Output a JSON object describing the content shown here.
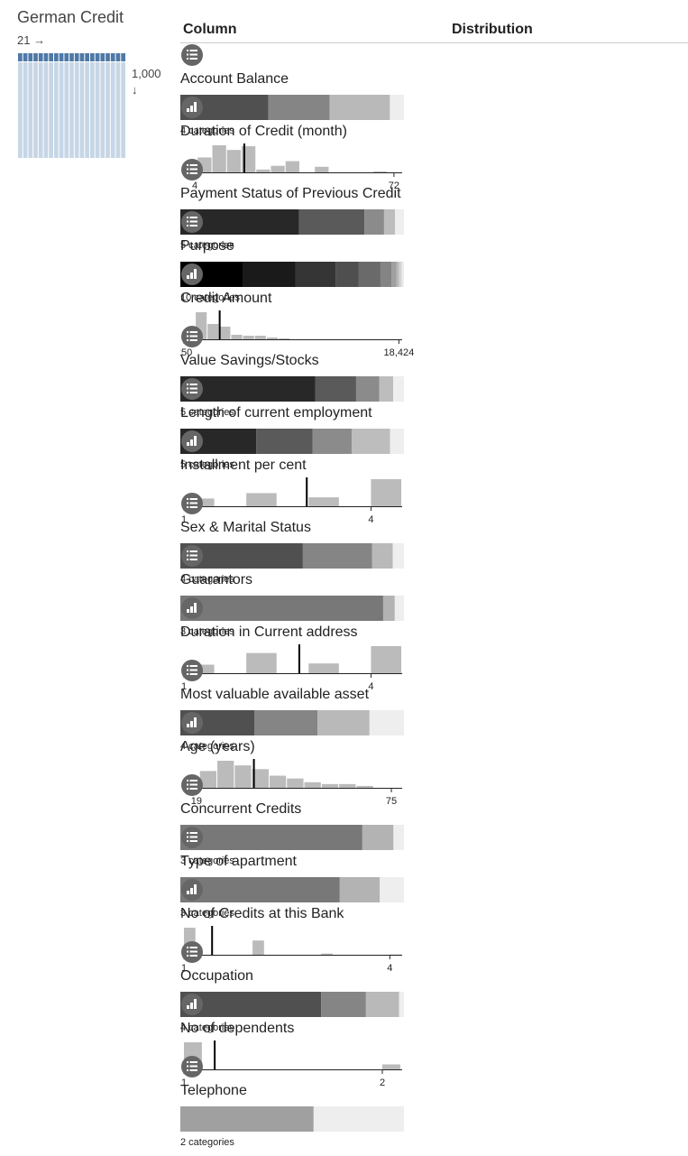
{
  "header": {
    "title": "German Credit",
    "columns": 21,
    "rows": "1,000"
  },
  "table": {
    "headers": [
      "Column",
      "Distribution"
    ],
    "rows": [
      {
        "name": "Account Balance",
        "kind": "categorical",
        "segments": [
          39.4,
          27.4,
          26.9,
          6.3
        ],
        "label": "4 categories"
      },
      {
        "name": "Duration of Credit (month)",
        "kind": "numeric",
        "xlim": [
          0.3,
          74.8
        ],
        "xticks": [
          4,
          72
        ],
        "bins": [
          5,
          10,
          15,
          20,
          25,
          30,
          35,
          40,
          45,
          50,
          55,
          60,
          65,
          70
        ],
        "counts": [
          16,
          29,
          24,
          28,
          3,
          7,
          12,
          0,
          6,
          0,
          0,
          0,
          1
        ],
        "mean": 20.9
      },
      {
        "name": "Payment Status of Previous Credit",
        "kind": "categorical",
        "segments": [
          53,
          29.3,
          8.8,
          4.9,
          4
        ],
        "label": "5 categories"
      },
      {
        "name": "Purpose",
        "kind": "categorical",
        "segments": [
          28,
          23.4,
          18.1,
          10.3,
          9.7,
          5,
          2.2,
          1.2,
          1.2,
          0.9
        ],
        "label": "10 categories"
      },
      {
        "name": "Credit Amount",
        "kind": "numeric",
        "xlim": [
          250,
          18700
        ],
        "xticks": [
          250,
          {
            "value": 18424,
            "label": "18,424"
          }
        ],
        "bins": [
          250,
          1250,
          2250,
          3250,
          4250,
          5250,
          6250,
          7250,
          8250,
          9250
        ],
        "counts": [
          9,
          30,
          17,
          14,
          5,
          4,
          4,
          2,
          1
        ],
        "mean": 3271
      },
      {
        "name": "Value Savings/Stocks",
        "kind": "categorical",
        "segments": [
          60.3,
          18.3,
          10.3,
          6.3,
          4.8
        ],
        "label": "5 categories"
      },
      {
        "name": "Length of current employment",
        "kind": "categorical",
        "segments": [
          33.9,
          25.3,
          17.4,
          17.2,
          6.2
        ],
        "label": "5 categories"
      },
      {
        "name": "Installment per cent",
        "kind": "numeric",
        "xlim": [
          1,
          4.5
        ],
        "xticks": [
          1,
          4
        ],
        "bins": [
          1,
          1.5,
          2,
          2.5,
          3,
          3.5,
          4,
          4.5
        ],
        "counts": [
          136,
          0,
          231,
          0,
          157,
          0,
          476
        ],
        "mean": 2.97
      },
      {
        "name": "Sex & Marital Status",
        "kind": "categorical",
        "segments": [
          54.8,
          31,
          9.2,
          5
        ],
        "label": "4 categories"
      },
      {
        "name": "Guarantors",
        "kind": "categorical",
        "segments": [
          90.7,
          5.2,
          4.1
        ],
        "label": "3 categories"
      },
      {
        "name": "Duration in Current address",
        "kind": "numeric",
        "xlim": [
          1,
          4.5
        ],
        "xticks": [
          1,
          4
        ],
        "bins": [
          1,
          1.5,
          2,
          2.5,
          3,
          3.5,
          4,
          4.5
        ],
        "counts": [
          130,
          0,
          308,
          0,
          149,
          0,
          413
        ],
        "mean": 2.85
      },
      {
        "name": "Most valuable available asset",
        "kind": "categorical",
        "segments": [
          33.2,
          28.2,
          23.2,
          15.4
        ],
        "label": "4 categories"
      },
      {
        "name": "Age (years)",
        "kind": "numeric",
        "xlim": [
          15.4,
          78.1
        ],
        "xticks": [
          19,
          75
        ],
        "bins": [
          20,
          25,
          30,
          35,
          40,
          45,
          50,
          55,
          60,
          65,
          70,
          75
        ],
        "counts": [
          18,
          29,
          24,
          20,
          13,
          10,
          6,
          4,
          4,
          2,
          0
        ],
        "mean": 35.5
      },
      {
        "name": "Concurrent Credits",
        "kind": "categorical",
        "segments": [
          81.4,
          13.9,
          4.7
        ],
        "label": "3 categories"
      },
      {
        "name": "Type of apartment",
        "kind": "categorical",
        "segments": [
          71.3,
          17.9,
          10.8
        ],
        "label": "3 categories"
      },
      {
        "name": "No of Credits at this Bank",
        "kind": "numeric",
        "xlim": [
          1,
          4.18
        ],
        "xticks": [
          1,
          4
        ],
        "bins": [
          1,
          1.18,
          2,
          2.18,
          3,
          3.18,
          4,
          4.18
        ],
        "counts": [
          633,
          0,
          333,
          0,
          28,
          0,
          6
        ],
        "mean": 1.41
      },
      {
        "name": "Occupation",
        "kind": "categorical",
        "segments": [
          63,
          20,
          14.8,
          2.2
        ],
        "label": "4 categories"
      },
      {
        "name": "No of dependents",
        "kind": "numeric",
        "xlim": [
          1,
          2.1
        ],
        "xticks": [
          1,
          2
        ],
        "bins": [
          1,
          1.095,
          2,
          2.095
        ],
        "counts": [
          845,
          0,
          155
        ],
        "mean": 1.155
      },
      {
        "name": "Telephone",
        "kind": "categorical",
        "segments": [
          59.6,
          40.4
        ],
        "label": "2 categories"
      }
    ]
  }
}
